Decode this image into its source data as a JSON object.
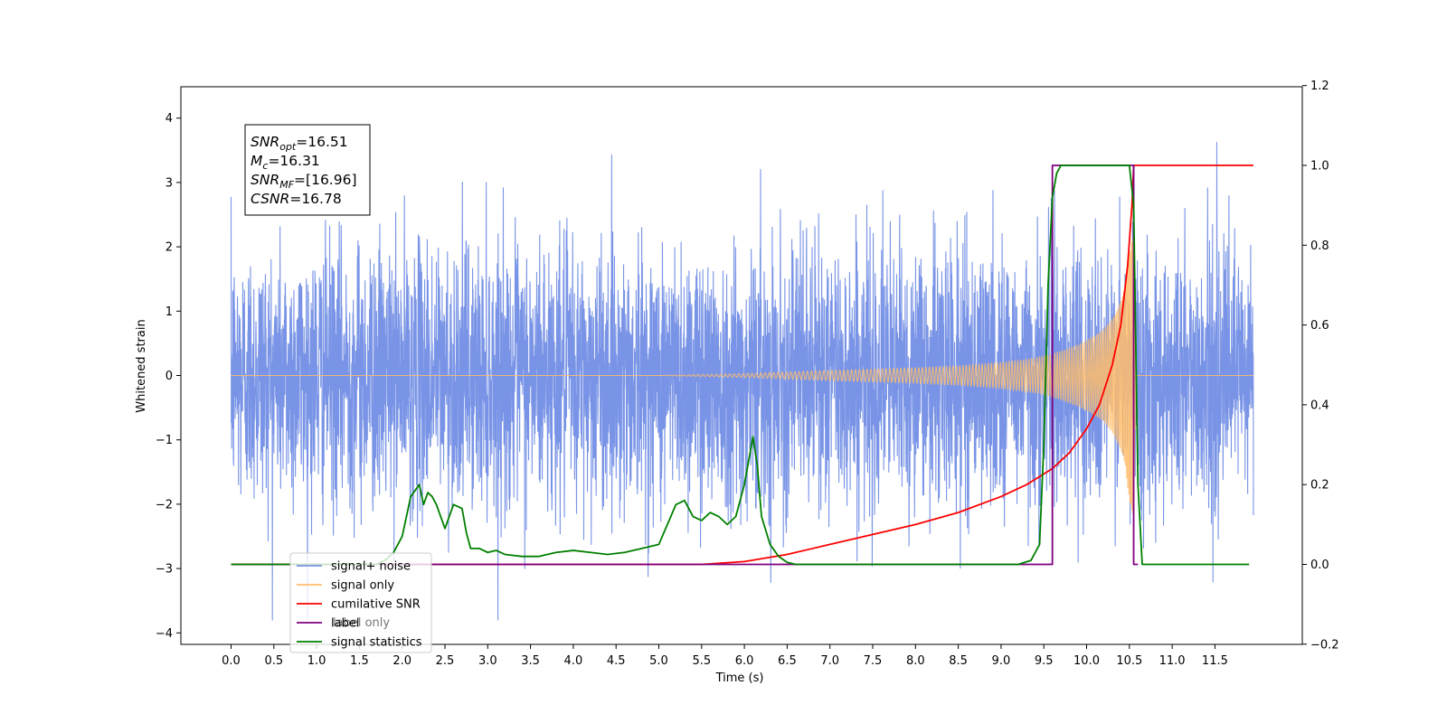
{
  "chart_data": {
    "type": "line",
    "title": "",
    "xlabel": "Time (s)",
    "ylabel": "Whitened strain",
    "y2label": "",
    "xlim": [
      -0.6,
      12.6
    ],
    "ylim": [
      -4.15,
      4.5
    ],
    "y2lim": [
      -0.2,
      1.2
    ],
    "x_ticks": [
      0.0,
      0.5,
      1.0,
      1.5,
      2.0,
      2.5,
      3.0,
      3.5,
      4.0,
      4.5,
      5.0,
      5.5,
      6.0,
      6.5,
      7.0,
      7.5,
      8.0,
      8.5,
      9.0,
      9.5,
      10.0,
      10.5,
      11.0,
      11.5
    ],
    "x_tick_labels": [
      "0.0",
      "0.5",
      "1.0",
      "1.5",
      "2.0",
      "2.5",
      "3.0",
      "3.5",
      "4.0",
      "4.5",
      "5.0",
      "5.5",
      "6.0",
      "6.5",
      "7.0",
      "7.5",
      "8.0",
      "8.5",
      "9.0",
      "9.5",
      "10.0",
      "10.5",
      "11.0",
      "11.5"
    ],
    "y_ticks": [
      -4,
      -3,
      -2,
      -1,
      0,
      1,
      2,
      3,
      4
    ],
    "y_tick_labels": [
      "−4",
      "−3",
      "−2",
      "−1",
      "0",
      "1",
      "2",
      "3",
      "4"
    ],
    "y2_ticks": [
      -0.2,
      0.0,
      0.2,
      0.4,
      0.6,
      0.8,
      1.0,
      1.2
    ],
    "y2_tick_labels": [
      "−0.2",
      "0.0",
      "0.2",
      "0.4",
      "0.6",
      "0.8",
      "1.0",
      "1.2"
    ],
    "grid": false,
    "legend_position": "lower-left",
    "legend": [
      {
        "label": "signal+ noise",
        "color": "#7994e6"
      },
      {
        "label": "signal only",
        "color": "#ffbd6b"
      },
      {
        "label": "cumilative SNR",
        "color": "#ff0000"
      },
      {
        "label": "label",
        "color": "#800080"
      },
      {
        "label": "signal statistics",
        "color": "#008000"
      }
    ],
    "legend_hidden_label": "label only",
    "stats_box": [
      {
        "base": "SNR",
        "sub": "opt",
        "value": "=16.51"
      },
      {
        "base": "M",
        "sub": "c",
        "value": "=16.31"
      },
      {
        "base": "SNR",
        "sub": "MF",
        "value": "=[16.96]"
      },
      {
        "base": "CSNR",
        "sub": "",
        "value": "=16.78"
      }
    ],
    "series": [
      {
        "name": "signal+ noise",
        "axis": "left",
        "color": "#7994e6",
        "description": "whitened noise, approx N(0,1), 0.0–11.95 s",
        "x_range": [
          0.0,
          11.95
        ],
        "std": 1.0
      },
      {
        "name": "signal only",
        "axis": "left",
        "color": "#ffbd6b",
        "envelope_x": [
          0.0,
          5.0,
          6.0,
          7.0,
          8.0,
          8.5,
          9.0,
          9.3,
          9.5,
          9.7,
          9.9,
          10.1,
          10.2,
          10.3,
          10.4,
          10.45,
          10.5,
          10.55,
          10.58,
          11.95
        ],
        "envelope_y": [
          0.0,
          0.0,
          0.03,
          0.08,
          0.12,
          0.15,
          0.2,
          0.25,
          0.3,
          0.38,
          0.48,
          0.62,
          0.72,
          0.88,
          1.15,
          1.4,
          1.95,
          2.2,
          0.0,
          0.0
        ]
      },
      {
        "name": "cumilative SNR",
        "axis": "right",
        "color": "#ff0000",
        "x": [
          0.0,
          5.5,
          6.0,
          6.5,
          7.0,
          7.5,
          8.0,
          8.5,
          9.0,
          9.3,
          9.6,
          9.8,
          10.0,
          10.15,
          10.3,
          10.4,
          10.48,
          10.53,
          10.55,
          11.95
        ],
        "y": [
          0.0,
          0.0,
          0.007,
          0.025,
          0.05,
          0.075,
          0.1,
          0.13,
          0.17,
          0.2,
          0.24,
          0.28,
          0.34,
          0.4,
          0.5,
          0.6,
          0.75,
          0.9,
          1.0,
          1.0
        ]
      },
      {
        "name": "label",
        "axis": "right",
        "color": "#800080",
        "x": [
          0.0,
          9.6,
          9.6,
          10.55,
          10.55,
          10.6
        ],
        "y": [
          0.0,
          0.0,
          1.0,
          1.0,
          0.0,
          0.0
        ]
      },
      {
        "name": "signal statistics",
        "axis": "right",
        "color": "#008000",
        "x": [
          0.0,
          1.7,
          1.8,
          1.9,
          2.0,
          2.1,
          2.2,
          2.25,
          2.3,
          2.35,
          2.4,
          2.5,
          2.6,
          2.7,
          2.75,
          2.8,
          2.9,
          3.0,
          3.1,
          3.2,
          3.4,
          3.6,
          3.8,
          4.0,
          4.2,
          4.4,
          4.6,
          4.8,
          5.0,
          5.2,
          5.3,
          5.4,
          5.5,
          5.6,
          5.7,
          5.8,
          5.9,
          6.0,
          6.1,
          6.15,
          6.2,
          6.3,
          6.4,
          6.5,
          6.6,
          6.7,
          6.8,
          9.2,
          9.35,
          9.45,
          9.5,
          9.55,
          9.6,
          9.65,
          9.7,
          9.8,
          9.9,
          10.0,
          10.2,
          10.5,
          10.55,
          10.6,
          10.65,
          11.9
        ],
        "y": [
          0.0,
          0.0,
          0.01,
          0.03,
          0.07,
          0.17,
          0.2,
          0.15,
          0.18,
          0.17,
          0.15,
          0.09,
          0.15,
          0.14,
          0.08,
          0.04,
          0.04,
          0.03,
          0.035,
          0.025,
          0.02,
          0.02,
          0.03,
          0.035,
          0.03,
          0.025,
          0.03,
          0.04,
          0.05,
          0.15,
          0.16,
          0.12,
          0.11,
          0.13,
          0.12,
          0.1,
          0.12,
          0.2,
          0.32,
          0.25,
          0.12,
          0.05,
          0.02,
          0.005,
          0.0,
          0.0,
          0.0,
          0.0,
          0.01,
          0.05,
          0.3,
          0.7,
          0.92,
          0.98,
          1.0,
          1.0,
          1.0,
          1.0,
          1.0,
          1.0,
          0.9,
          0.2,
          0.0,
          0.0
        ]
      }
    ]
  }
}
